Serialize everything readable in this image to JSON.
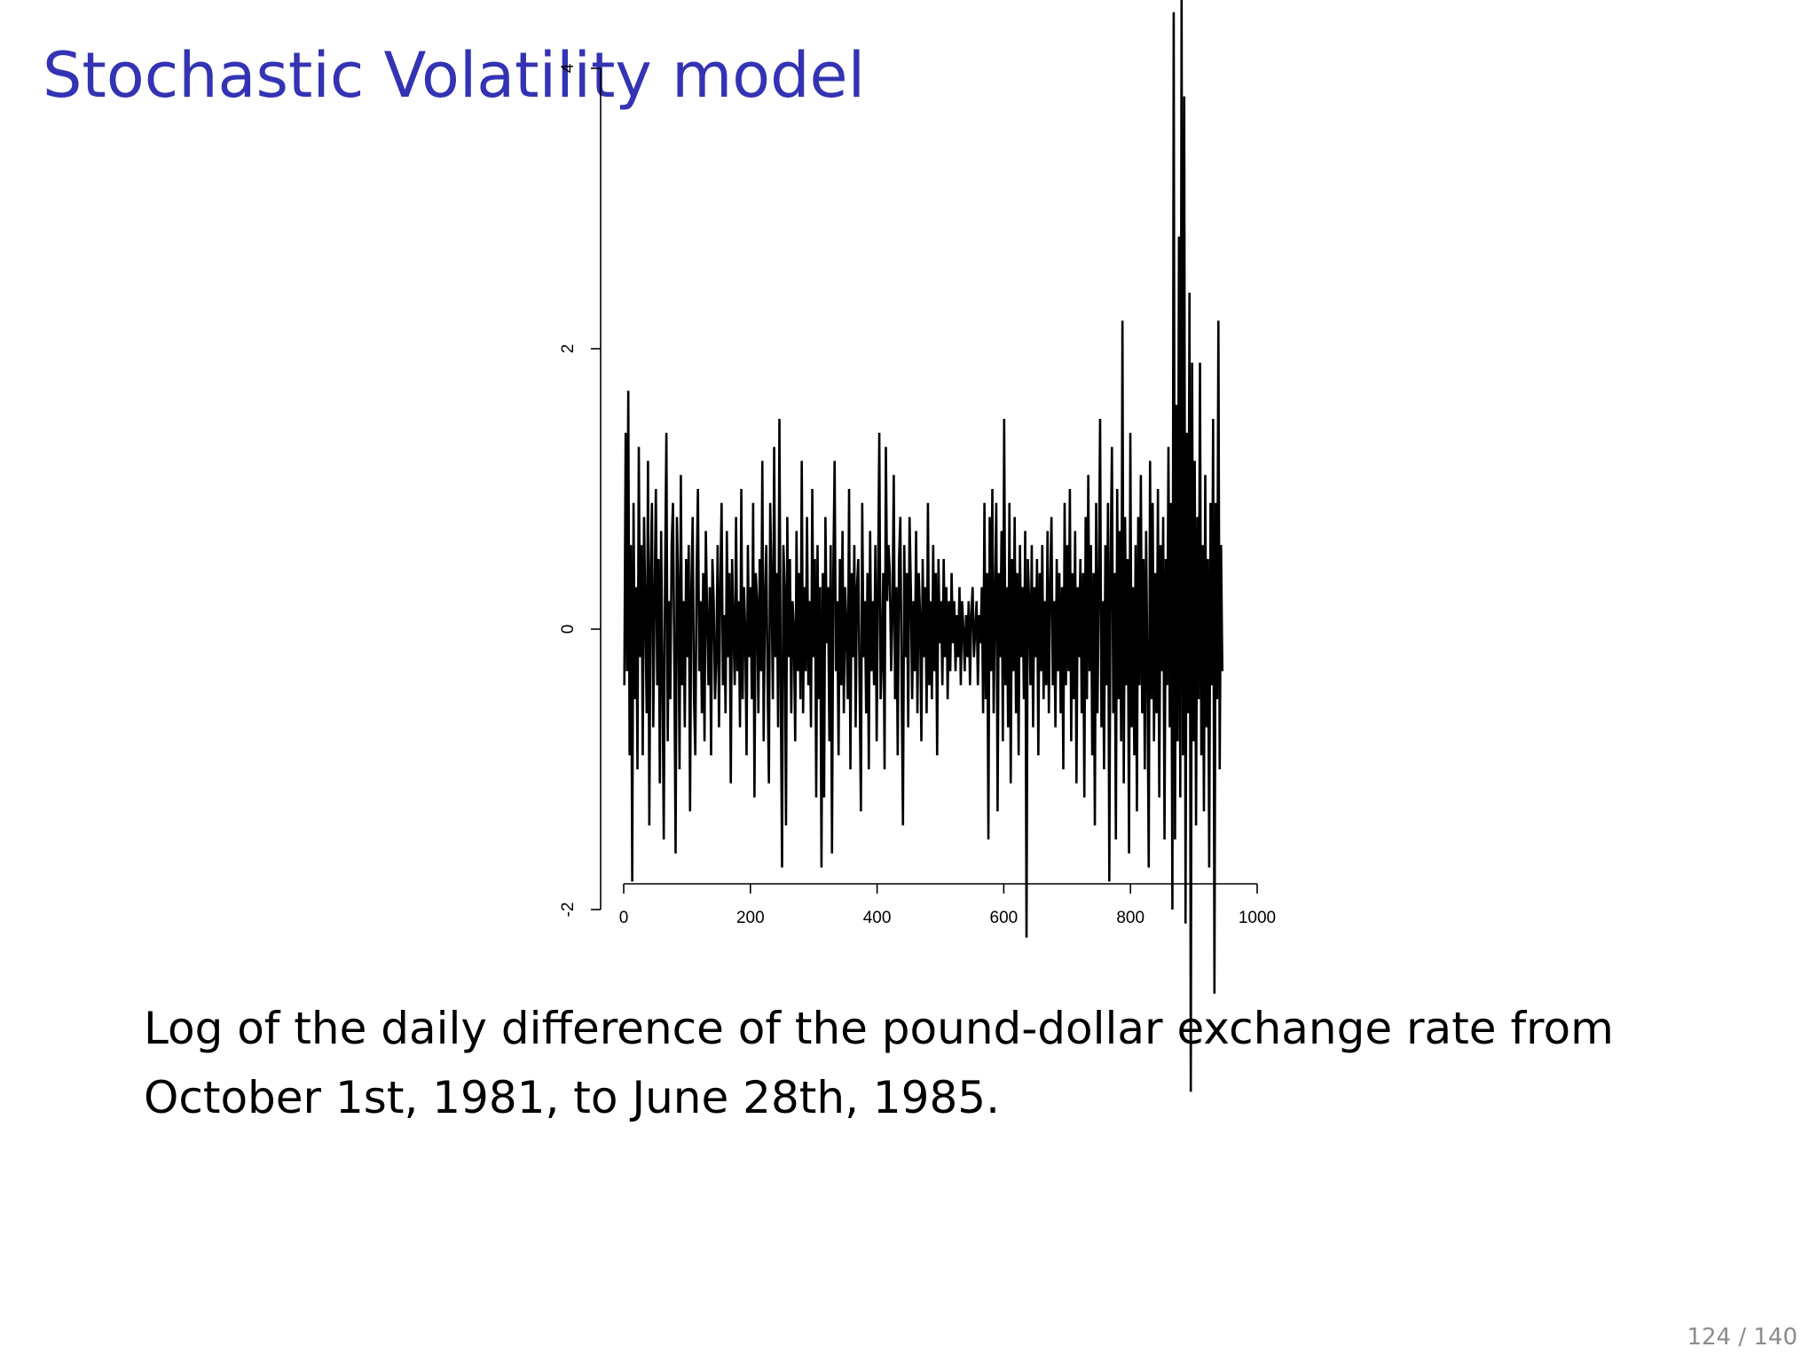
{
  "slide": {
    "title": "Stochastic Volatility model",
    "caption": "Log of the daily difference of the pound-dollar exchange rate from October 1st, 1981, to June 28th, 1985.",
    "page_number": "124 / 140"
  },
  "colors": {
    "title": "#3333b3",
    "line": "#000000",
    "page_number": "#8c8c8c"
  },
  "chart_data": {
    "type": "line",
    "title": "",
    "xlabel": "",
    "ylabel": "",
    "xlim": [
      0,
      1000
    ],
    "ylim": [
      -3.3,
      4.5
    ],
    "x_ticks": [
      0,
      200,
      400,
      600,
      800,
      1000
    ],
    "y_ticks": [
      -2,
      0,
      2,
      4
    ],
    "x_tick_labels": [
      "0",
      "200",
      "400",
      "600",
      "800",
      "1000"
    ],
    "y_tick_labels": [
      "-2",
      "0",
      "2",
      "4"
    ],
    "grid": false,
    "legend": "none",
    "x_start": 1,
    "series": [
      {
        "color": "#000000",
        "values": [
          -0.4,
          1.4,
          -0.3,
          1.7,
          -0.9,
          0.6,
          -1.8,
          0.9,
          -0.5,
          0.3,
          -1.0,
          1.3,
          -0.2,
          0.6,
          -0.9,
          0.8,
          0.1,
          -0.6,
          1.2,
          -1.4,
          0.4,
          0.9,
          -0.7,
          0.2,
          1.0,
          -0.4,
          0.5,
          -1.1,
          0.7,
          -0.3,
          -1.5,
          0.4,
          1.4,
          -0.8,
          0.2,
          -0.5,
          0.6,
          0.9,
          -0.2,
          -1.6,
          0.8,
          0.3,
          -1.0,
          1.1,
          -0.4,
          0.2,
          -0.7,
          0.5,
          -0.2,
          0.6,
          -1.3,
          0.3,
          0.8,
          -0.5,
          -0.9,
          0.4,
          1.0,
          -0.3,
          0.2,
          -0.6,
          0.4,
          -0.8,
          0.7,
          0.1,
          -0.4,
          0.3,
          -0.9,
          0.5,
          0.2,
          -0.5,
          -0.2,
          0.6,
          -0.7,
          0.3,
          0.9,
          -0.4,
          0.1,
          -0.6,
          0.7,
          -0.2,
          0.4,
          -1.1,
          0.5,
          0.0,
          -0.4,
          0.8,
          -0.3,
          0.2,
          -0.7,
          1.0,
          -0.5,
          0.3,
          0.0,
          -0.9,
          0.6,
          -0.2,
          0.3,
          -0.5,
          0.9,
          -1.2,
          0.4,
          0.2,
          -0.6,
          0.5,
          -0.3,
          1.2,
          -0.8,
          0.2,
          0.6,
          -0.4,
          -1.1,
          0.9,
          0.3,
          -0.5,
          1.3,
          -0.2,
          0.4,
          -0.7,
          1.5,
          -0.4,
          -1.7,
          0.6,
          0.3,
          -1.4,
          0.8,
          -0.2,
          0.5,
          -0.6,
          0.2,
          0.0,
          -0.8,
          0.7,
          -0.3,
          0.4,
          -0.5,
          1.2,
          -0.6,
          0.3,
          -0.3,
          0.8,
          -0.4,
          0.2,
          -0.7,
          1.0,
          -0.2,
          0.5,
          -1.2,
          0.6,
          -0.5,
          0.3,
          -1.7,
          0.4,
          -1.2,
          0.8,
          -0.1,
          0.3,
          -0.8,
          0.6,
          -1.6,
          0.4,
          1.2,
          -0.3,
          0.2,
          -0.9,
          0.5,
          -0.4,
          0.7,
          -0.6,
          0.3,
          0.0,
          -0.5,
          1.0,
          -1.0,
          0.4,
          -0.2,
          0.6,
          -0.7,
          0.3,
          0.5,
          -0.4,
          -1.3,
          0.9,
          -0.2,
          0.2,
          -0.6,
          0.4,
          -1.0,
          0.7,
          -0.3,
          0.2,
          -0.4,
          0.6,
          -0.8,
          0.3,
          1.4,
          -0.5,
          -0.2,
          0.4,
          -1.0,
          1.3,
          0.2,
          0.6,
          0.4,
          -0.3,
          0.1,
          1.1,
          -0.5,
          0.3,
          -0.9,
          0.5,
          0.8,
          -0.4,
          -1.4,
          0.6,
          -0.2,
          0.4,
          -0.7,
          0.8,
          0.3,
          -0.5,
          0.2,
          -0.3,
          0.7,
          -0.6,
          0.4,
          0.1,
          -0.8,
          0.5,
          -0.2,
          0.3,
          -0.6,
          0.9,
          -0.4,
          0.2,
          -0.5,
          0.6,
          -0.3,
          0.4,
          -0.9,
          0.5,
          -0.1,
          0.2,
          -0.4,
          0.5,
          -0.2,
          0.3,
          -0.5,
          0.2,
          -0.3,
          0.4,
          -0.1,
          0.2,
          -0.3,
          0.1,
          -0.2,
          0.3,
          -0.4,
          0.2,
          0.0,
          -0.3,
          0.1,
          -0.2,
          0.2,
          -0.4,
          0.1,
          0.3,
          -0.2,
          0.0,
          0.2,
          -0.4,
          0.1,
          -0.1,
          0.3,
          -0.6,
          0.9,
          -0.5,
          0.4,
          -1.5,
          0.8,
          -0.3,
          1.0,
          -0.6,
          0.2,
          0.9,
          -1.3,
          0.4,
          -0.2,
          0.7,
          -0.8,
          1.5,
          -0.4,
          0.3,
          -0.7,
          0.9,
          -1.1,
          0.5,
          -0.3,
          0.8,
          -0.6,
          0.4,
          -0.9,
          0.6,
          -0.2,
          0.3,
          -0.5,
          0.7,
          -2.2,
          0.5,
          0.2,
          -0.4,
          0.6,
          -0.7,
          0.3,
          -0.2,
          0.5,
          -0.9,
          0.4,
          -0.3,
          0.6,
          -0.5,
          0.2,
          -0.4,
          0.7,
          -0.6,
          0.3,
          0.8,
          -0.4,
          0.2,
          -0.7,
          0.5,
          -0.3,
          0.4,
          -0.6,
          0.3,
          -1.0,
          0.9,
          -0.4,
          0.6,
          -0.3,
          1.0,
          -0.8,
          0.4,
          -0.5,
          0.7,
          -1.1,
          0.3,
          -0.2,
          0.5,
          -0.6,
          0.4,
          -1.2,
          0.8,
          -0.5,
          1.1,
          -0.3,
          0.6,
          -0.9,
          0.4,
          -1.4,
          0.9,
          -0.6,
          0.3,
          1.5,
          -0.7,
          0.2,
          -1.0,
          0.6,
          -0.4,
          0.9,
          -1.8,
          0.5,
          1.3,
          -0.6,
          0.4,
          -1.5,
          1.0,
          -0.5,
          0.7,
          -0.8,
          2.2,
          -1.1,
          0.8,
          -0.4,
          0.5,
          -1.6,
          1.4,
          -0.7,
          0.3,
          -0.9,
          0.6,
          -1.3,
          0.8,
          -0.4,
          1.1,
          -0.6,
          0.5,
          -1.0,
          0.7,
          -0.3,
          -1.7,
          1.2,
          -0.5,
          0.9,
          -0.8,
          0.4,
          -0.6,
          1.0,
          -1.2,
          0.6,
          -0.3,
          0.8,
          -1.5,
          0.5,
          -0.4,
          1.3,
          -0.7,
          0.9,
          -2.0,
          4.4,
          -1.5,
          1.6,
          -0.8,
          2.8,
          -1.2,
          4.5,
          -0.9,
          3.8,
          -2.1,
          1.4,
          -0.6,
          2.4,
          -3.3,
          1.9,
          -0.8,
          1.2,
          -1.4,
          0.8,
          -0.5,
          1.9,
          -0.9,
          0.6,
          -1.3,
          1.1,
          -0.7,
          0.5,
          -1.7,
          0.9,
          -0.4,
          1.5,
          -2.6,
          0.9,
          -0.5,
          2.2,
          -1.0,
          0.6,
          -0.3
        ]
      }
    ]
  }
}
